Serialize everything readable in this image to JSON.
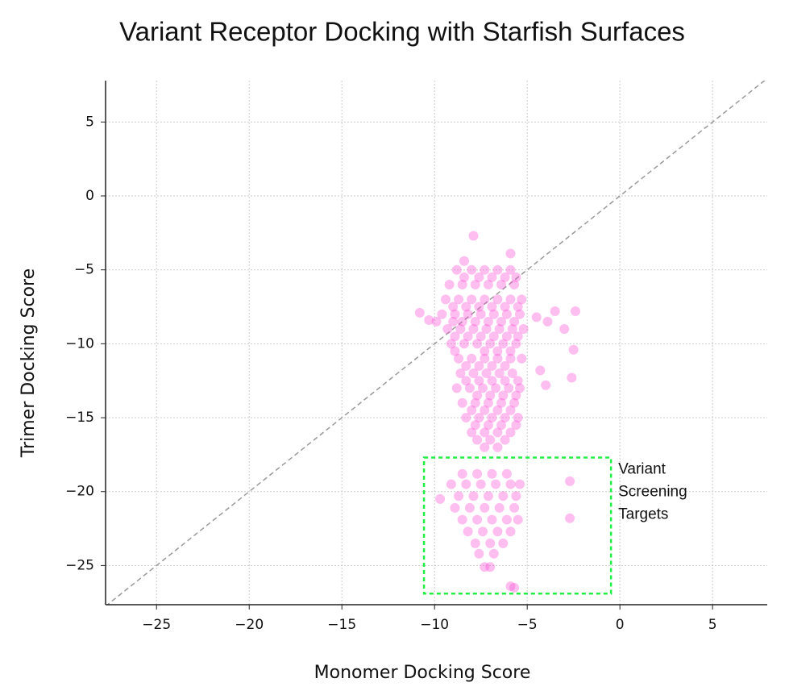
{
  "chart_data": {
    "type": "scatter",
    "title": "Variant Receptor Docking with Starfish Surfaces",
    "x_label": "Monomer Docking Score",
    "y_label": "Trimer Docking Score",
    "xlim": [
      -27.75,
      7.95
    ],
    "ylim": [
      -27.65,
      7.8
    ],
    "xticks": [
      {
        "value": -25,
        "label": "−25"
      },
      {
        "value": -20,
        "label": "−20"
      },
      {
        "value": -15,
        "label": "−15"
      },
      {
        "value": -10,
        "label": "−10"
      },
      {
        "value": -5,
        "label": "−5"
      },
      0,
      5
    ],
    "yticks": [
      {
        "value": -25,
        "label": "−25"
      },
      {
        "value": -20,
        "label": "−20"
      },
      {
        "value": -15,
        "label": "−15"
      },
      {
        "value": -10,
        "label": "−10"
      },
      {
        "value": -5,
        "label": "−5"
      },
      0,
      5
    ],
    "grid": true,
    "identity_line": true,
    "x": [
      -8.8,
      -8,
      -7.3,
      -6.6,
      -5.9,
      -8.4,
      -7.6,
      -6.9,
      -6.2,
      -5.6,
      -9.2,
      -8.5,
      -7.8,
      -7.1,
      -6.4,
      -5.7,
      -9.4,
      -8.7,
      -8,
      -7.3,
      -6.6,
      -5.9,
      -5.3,
      -9,
      -8.3,
      -7.6,
      -6.9,
      -6.2,
      -5.5,
      -9.6,
      -8.9,
      -8.2,
      -7.5,
      -6.8,
      -6.1,
      -5.4,
      -9.9,
      -9,
      -8.5,
      -7.8,
      -7.1,
      -6.4,
      -5.7,
      -9.3,
      -8.6,
      -7.9,
      -7.2,
      -6.5,
      -5.8,
      -5.2,
      -8.9,
      -8.2,
      -7.5,
      -6.8,
      -6.1,
      -5.5,
      -9.1,
      -8.4,
      -7.7,
      -7,
      -6.3,
      -5.6,
      -8.9,
      -7.3,
      -6.6,
      -5.9,
      -8.7,
      -8,
      -7.3,
      -6.6,
      -5.9,
      -5.3,
      -8.3,
      -7.6,
      -6.9,
      -6.2,
      -8.6,
      -7.9,
      -7.2,
      -6.5,
      -5.8,
      -8.3,
      -7.6,
      -6.9,
      -6.2,
      -5.5,
      -8.8,
      -8.1,
      -7.4,
      -6.7,
      -6,
      -5.4,
      -7.7,
      -7,
      -6.3,
      -5.6,
      -8.5,
      -7.8,
      -7.1,
      -6.4,
      -5.7,
      -8,
      -7.3,
      -6.6,
      -5.9,
      -8.3,
      -7.6,
      -6.9,
      -6.2,
      -5.5,
      -7.8,
      -7.1,
      -6.4,
      -5.6,
      -8,
      -7.3,
      -6.6,
      -5.9,
      -7.7,
      -7,
      -6.2,
      -7.3,
      -6.6,
      -8.5,
      -7.7,
      -6.9,
      -6.1,
      -9.1,
      -8.3,
      -7.5,
      -6.7,
      -5.9,
      -5.4,
      -8.7,
      -7.9,
      -7.1,
      -6.3,
      -5.6,
      -8.9,
      -8.1,
      -7.3,
      -6.5,
      -5.7,
      -8.5,
      -7.7,
      -6.9,
      -6.1,
      -5.5,
      -8.2,
      -7.4,
      -6.6,
      -5.9,
      -7.8,
      -7,
      -6.3,
      -7.6,
      -6.8,
      -7.9,
      -5.9,
      -8.4,
      -10.8,
      -10.3,
      -4.5,
      -3.9,
      -3.5,
      -2.4,
      -3,
      -2.5,
      -4.3,
      -4,
      -2.6,
      -9.7,
      -2.7,
      -2.7,
      -7.3,
      -7,
      -5.9,
      -5.7
    ],
    "series": [
      {
        "color": "#ff44d4",
        "values": [
          -5,
          -5,
          -5,
          -5,
          -5,
          -5.5,
          -5.5,
          -5.5,
          -5.5,
          -5.5,
          -6,
          -6,
          -6,
          -6,
          -6,
          -6,
          -7,
          -7,
          -7,
          -7,
          -7,
          -7,
          -7,
          -7.5,
          -7.5,
          -7.5,
          -7.5,
          -7.5,
          -7.5,
          -8,
          -8,
          -8,
          -8,
          -8,
          -8,
          -8,
          -8.5,
          -8.5,
          -8.5,
          -8.5,
          -8.5,
          -8.5,
          -8.5,
          -9,
          -9,
          -9,
          -9,
          -9,
          -9,
          -9,
          -9.5,
          -9.5,
          -9.5,
          -9.5,
          -9.5,
          -9.5,
          -10,
          -10,
          -10,
          -10,
          -10,
          -10,
          -10.5,
          -10.5,
          -10.5,
          -10.5,
          -11,
          -11,
          -11,
          -11,
          -11,
          -11,
          -11.5,
          -11.5,
          -11.5,
          -11.5,
          -12,
          -12,
          -12,
          -12,
          -12,
          -12.5,
          -12.5,
          -12.5,
          -12.5,
          -12.5,
          -13,
          -13,
          -13,
          -13,
          -13,
          -13,
          -13.5,
          -13.5,
          -13.5,
          -13.5,
          -14,
          -14,
          -14,
          -14,
          -14,
          -14.5,
          -14.5,
          -14.5,
          -14.5,
          -15,
          -15,
          -15,
          -15,
          -15,
          -15.5,
          -15.5,
          -15.5,
          -15.5,
          -16,
          -16,
          -16,
          -16,
          -16.5,
          -16.5,
          -16.5,
          -17,
          -17,
          -18.8,
          -18.8,
          -18.8,
          -18.8,
          -19.5,
          -19.5,
          -19.5,
          -19.5,
          -19.5,
          -19.5,
          -20.3,
          -20.3,
          -20.3,
          -20.3,
          -20.3,
          -21.1,
          -21.1,
          -21.1,
          -21.1,
          -21.1,
          -21.9,
          -21.9,
          -21.9,
          -21.9,
          -21.9,
          -22.7,
          -22.7,
          -22.7,
          -22.7,
          -23.5,
          -23.5,
          -23.5,
          -24.2,
          -24.2,
          -2.7,
          -3.9,
          -4.4,
          -7.9,
          -8.4,
          -8.2,
          -8.5,
          -7.8,
          -7.8,
          -9,
          -10.4,
          -11.8,
          -12.8,
          -12.3,
          -20.5,
          -19.3,
          -21.8,
          -25.1,
          -25.1,
          -26.4,
          -26.5
        ]
      }
    ],
    "highlight_box": {
      "x": [
        -10.57,
        -0.48
      ],
      "y": [
        -26.9,
        -17.7
      ],
      "color": "#22ee44",
      "label_lines": [
        "Variant",
        "Screening",
        "Targets"
      ]
    }
  }
}
